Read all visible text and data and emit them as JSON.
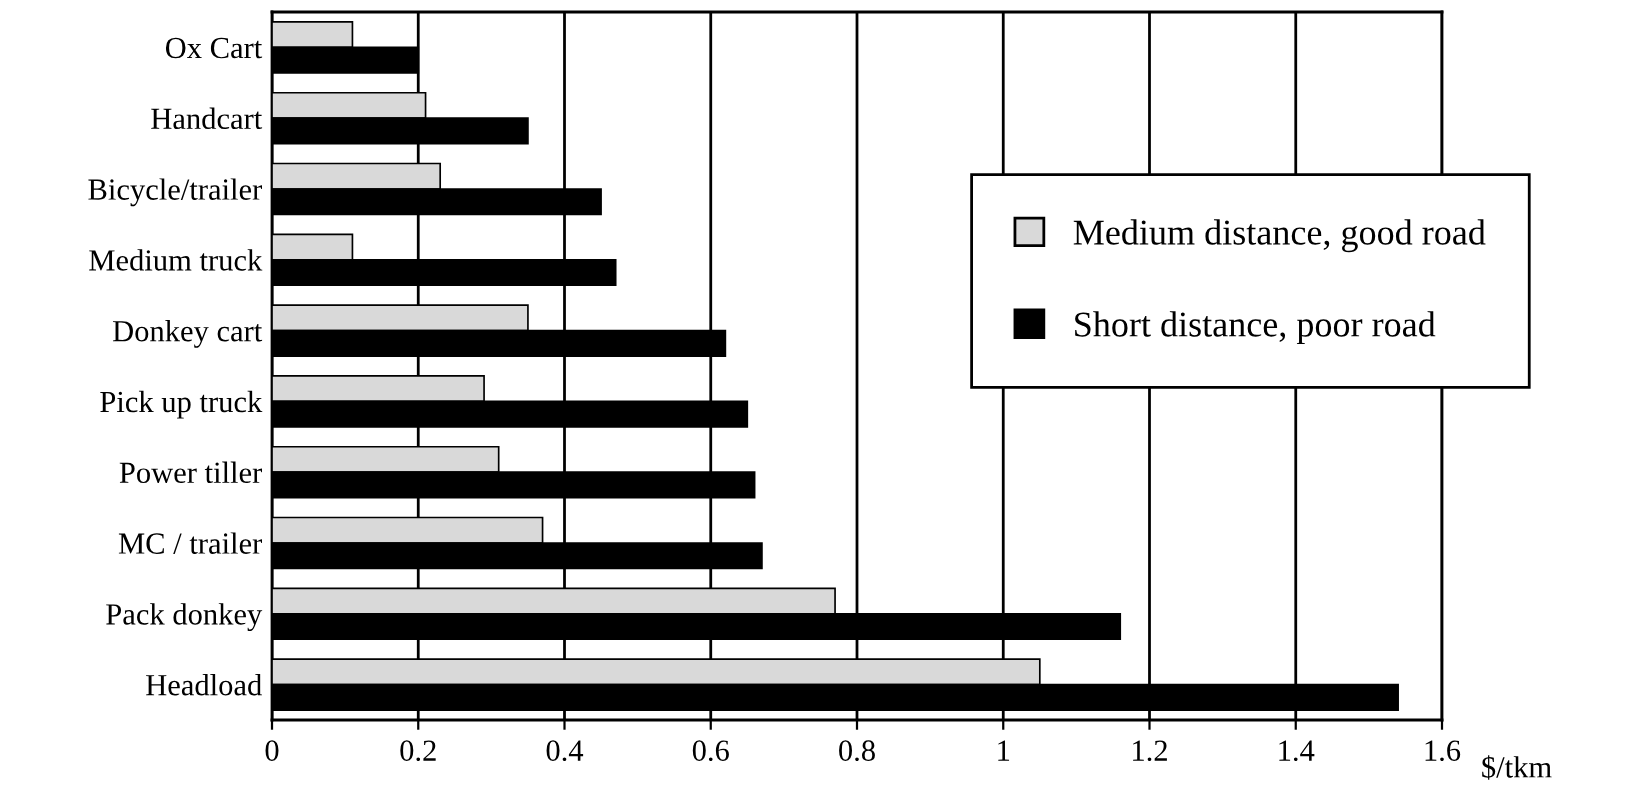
{
  "chart_data": {
    "type": "bar",
    "orientation": "horizontal",
    "xlabel": "$/tkm",
    "categories": [
      "Ox Cart",
      "Handcart",
      "Bicycle/trailer",
      "Medium truck",
      "Donkey cart",
      "Pick up truck",
      "Power tiller",
      "MC / trailer",
      "Pack donkey",
      "Headload"
    ],
    "series": [
      {
        "name": "Medium distance, good road",
        "color": "#d9d9d9",
        "values": [
          0.11,
          0.21,
          0.23,
          0.11,
          0.35,
          0.29,
          0.31,
          0.37,
          0.77,
          1.05
        ]
      },
      {
        "name": "Short distance, poor road",
        "color": "#000000",
        "values": [
          0.2,
          0.35,
          0.45,
          0.47,
          0.62,
          0.65,
          0.66,
          0.67,
          1.16,
          1.54
        ]
      }
    ],
    "xlim": [
      0,
      1.6
    ],
    "xticks": [
      0,
      0.2,
      0.4,
      0.6,
      0.8,
      1,
      1.2,
      1.4,
      1.6
    ],
    "grid": "x",
    "legend": "right"
  }
}
